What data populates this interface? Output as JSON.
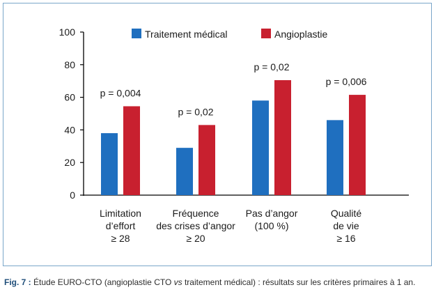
{
  "chart_data": {
    "type": "bar",
    "categories": [
      [
        "Limitation",
        "d’effort",
        "≥ 28"
      ],
      [
        "Fréquence",
        "des crises d’angor",
        "≥ 20"
      ],
      [
        "Pas d’angor",
        "(100 %)"
      ],
      [
        "Qualité",
        "de vie",
        "≥ 16"
      ]
    ],
    "series": [
      {
        "name": "Traitement médical",
        "color": "#1f6fbf",
        "values": [
          38,
          29,
          58,
          46
        ]
      },
      {
        "name": "Angioplastie",
        "color": "#c8202f",
        "values": [
          54.5,
          43,
          70.5,
          61.5
        ]
      }
    ],
    "annotations": [
      "p = 0,004",
      "p = 0,02",
      "p = 0,02",
      "p = 0,006"
    ],
    "ylim": [
      0,
      100
    ],
    "yticks": [
      0,
      20,
      40,
      60,
      80,
      100
    ],
    "legend": "top",
    "grid": false
  },
  "caption": {
    "label": "Fig. 7 :",
    "text_before": " Étude EURO-CTO (angioplastie CTO ",
    "italic": "vs",
    "text_after": " traitement médical) : résultats sur les critères primaires à 1 an."
  }
}
